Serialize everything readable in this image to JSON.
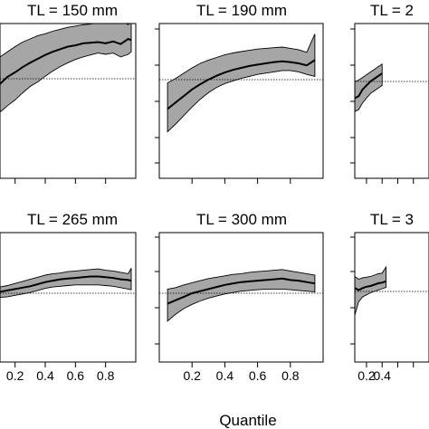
{
  "chart_data": [
    {
      "type": "area",
      "title": "TL = 150 mm",
      "xlabel": "",
      "ylabel": "",
      "xlim": [
        0.0,
        1.0
      ],
      "ylim": [
        -1.0,
        1.0
      ],
      "reference_line": 0.0,
      "xticks": [],
      "x": [
        0.0,
        0.05,
        0.1,
        0.15,
        0.2,
        0.25,
        0.3,
        0.35,
        0.4,
        0.45,
        0.5,
        0.55,
        0.6,
        0.65,
        0.7,
        0.75,
        0.8,
        0.85,
        0.9,
        0.95,
        0.97
      ],
      "lower": [
        -0.75,
        -0.62,
        -0.52,
        -0.42,
        -0.33,
        -0.22,
        -0.12,
        -0.05,
        0.04,
        0.12,
        0.19,
        0.25,
        0.3,
        0.34,
        0.37,
        0.4,
        0.38,
        0.4,
        0.34,
        0.38,
        0.42
      ],
      "mid": [
        -0.28,
        -0.22,
        -0.08,
        0.03,
        0.1,
        0.18,
        0.25,
        0.31,
        0.37,
        0.42,
        0.46,
        0.5,
        0.52,
        0.55,
        0.56,
        0.57,
        0.55,
        0.58,
        0.54,
        0.62,
        0.6
      ],
      "upper": [
        0.08,
        0.22,
        0.34,
        0.42,
        0.5,
        0.57,
        0.62,
        0.67,
        0.7,
        0.74,
        0.77,
        0.8,
        0.82,
        0.84,
        0.85,
        0.88,
        0.86,
        0.95,
        0.92,
        0.84,
        1.05
      ]
    },
    {
      "type": "area",
      "title": "TL = 190 mm",
      "xlabel": "",
      "ylabel": "",
      "xlim": [
        0.0,
        1.0
      ],
      "ylim": [
        -1.0,
        1.0
      ],
      "reference_line": 0.0,
      "xticks": [],
      "x": [
        0.05,
        0.1,
        0.15,
        0.2,
        0.25,
        0.3,
        0.35,
        0.4,
        0.45,
        0.5,
        0.55,
        0.6,
        0.65,
        0.7,
        0.75,
        0.8,
        0.85,
        0.9,
        0.95
      ],
      "lower": [
        -0.8,
        -0.68,
        -0.55,
        -0.42,
        -0.3,
        -0.2,
        -0.12,
        -0.06,
        -0.02,
        0.02,
        0.05,
        0.08,
        0.1,
        0.12,
        0.14,
        0.14,
        0.12,
        0.08,
        0.05
      ],
      "mid": [
        -0.45,
        -0.35,
        -0.25,
        -0.15,
        -0.07,
        0.0,
        0.06,
        0.11,
        0.15,
        0.18,
        0.21,
        0.23,
        0.25,
        0.27,
        0.28,
        0.27,
        0.25,
        0.22,
        0.3
      ],
      "upper": [
        -0.05,
        0.02,
        0.1,
        0.18,
        0.25,
        0.3,
        0.34,
        0.38,
        0.41,
        0.43,
        0.45,
        0.47,
        0.48,
        0.49,
        0.5,
        0.48,
        0.46,
        0.42,
        0.7
      ]
    },
    {
      "type": "area",
      "title": "TL = 2",
      "xlabel": "",
      "ylabel": "",
      "xlim": [
        0.0,
        1.0
      ],
      "ylim": [
        -1.0,
        1.0
      ],
      "reference_line": 0.0,
      "xticks": [],
      "x": [
        0.05,
        0.1,
        0.15,
        0.2,
        0.25,
        0.3,
        0.35,
        0.4
      ],
      "lower": [
        -0.45,
        -0.42,
        -0.32,
        -0.25,
        -0.18,
        -0.14,
        -0.1,
        -0.06
      ],
      "mid": [
        -0.25,
        -0.22,
        -0.12,
        -0.06,
        0.0,
        0.04,
        0.08,
        0.12
      ],
      "upper": [
        0.0,
        0.02,
        0.06,
        0.1,
        0.14,
        0.18,
        0.22,
        0.26
      ]
    },
    {
      "type": "area",
      "title": "TL = 265 mm",
      "xlabel": "",
      "ylabel": "",
      "xlim": [
        0.0,
        1.0
      ],
      "ylim": [
        -1.0,
        1.0
      ],
      "reference_line": 0.0,
      "xticks": [
        "0.2",
        "0.4",
        "0.6",
        "0.8"
      ],
      "x": [
        0.0,
        0.05,
        0.1,
        0.15,
        0.2,
        0.25,
        0.3,
        0.35,
        0.4,
        0.45,
        0.5,
        0.55,
        0.6,
        0.65,
        0.7,
        0.75,
        0.8,
        0.85,
        0.9,
        0.95,
        0.97
      ],
      "lower": [
        -0.1,
        -0.08,
        -0.06,
        -0.05,
        -0.03,
        -0.01,
        0.01,
        0.04,
        0.07,
        0.09,
        0.1,
        0.11,
        0.12,
        0.12,
        0.12,
        0.12,
        0.11,
        0.1,
        0.08,
        0.06,
        0.05
      ],
      "mid": [
        -0.02,
        0.0,
        0.02,
        0.04,
        0.06,
        0.08,
        0.1,
        0.13,
        0.16,
        0.18,
        0.2,
        0.21,
        0.22,
        0.23,
        0.24,
        0.24,
        0.23,
        0.22,
        0.2,
        0.19,
        0.18
      ],
      "upper": [
        0.05,
        0.07,
        0.09,
        0.11,
        0.14,
        0.17,
        0.2,
        0.23,
        0.26,
        0.28,
        0.29,
        0.31,
        0.32,
        0.33,
        0.34,
        0.35,
        0.33,
        0.32,
        0.3,
        0.28,
        0.36
      ]
    },
    {
      "type": "area",
      "title": "TL = 300 mm",
      "xlabel": "",
      "ylabel": "",
      "xlim": [
        0.0,
        1.0
      ],
      "ylim": [
        -1.0,
        1.0
      ],
      "reference_line": 0.0,
      "xticks": [
        "0.2",
        "0.4",
        "0.6",
        "0.8"
      ],
      "x": [
        0.05,
        0.1,
        0.15,
        0.2,
        0.25,
        0.3,
        0.35,
        0.4,
        0.45,
        0.5,
        0.55,
        0.6,
        0.65,
        0.7,
        0.75,
        0.8,
        0.85,
        0.9,
        0.95
      ],
      "lower": [
        -0.4,
        -0.3,
        -0.22,
        -0.16,
        -0.11,
        -0.07,
        -0.04,
        -0.01,
        0.01,
        0.03,
        0.04,
        0.05,
        0.06,
        0.06,
        0.06,
        0.05,
        0.04,
        0.03,
        0.02
      ],
      "mid": [
        -0.15,
        -0.1,
        -0.05,
        0.0,
        0.03,
        0.06,
        0.09,
        0.12,
        0.14,
        0.16,
        0.17,
        0.18,
        0.19,
        0.2,
        0.21,
        0.19,
        0.18,
        0.16,
        0.14
      ],
      "upper": [
        0.06,
        0.08,
        0.12,
        0.15,
        0.18,
        0.21,
        0.23,
        0.25,
        0.27,
        0.28,
        0.3,
        0.31,
        0.32,
        0.33,
        0.34,
        0.32,
        0.3,
        0.28,
        0.26
      ]
    },
    {
      "type": "area",
      "title": "TL = 3",
      "xlabel": "",
      "ylabel": "",
      "xlim": [
        0.0,
        1.0
      ],
      "ylim": [
        -1.0,
        1.0
      ],
      "reference_line": 0.0,
      "xticks": [
        "0.2",
        "0.4"
      ],
      "x": [
        0.05,
        0.1,
        0.15,
        0.2,
        0.25,
        0.3,
        0.35,
        0.4,
        0.45
      ],
      "lower": [
        -0.35,
        -0.15,
        -0.08,
        -0.05,
        -0.02,
        0.0,
        0.02,
        0.04,
        0.06
      ],
      "mid": [
        0.05,
        0.02,
        0.05,
        0.07,
        0.08,
        0.1,
        0.12,
        0.13,
        0.15
      ],
      "upper": [
        0.22,
        0.18,
        0.2,
        0.21,
        0.22,
        0.24,
        0.26,
        0.27,
        0.36
      ]
    }
  ],
  "figure": {
    "xlabel": "Quantile"
  }
}
